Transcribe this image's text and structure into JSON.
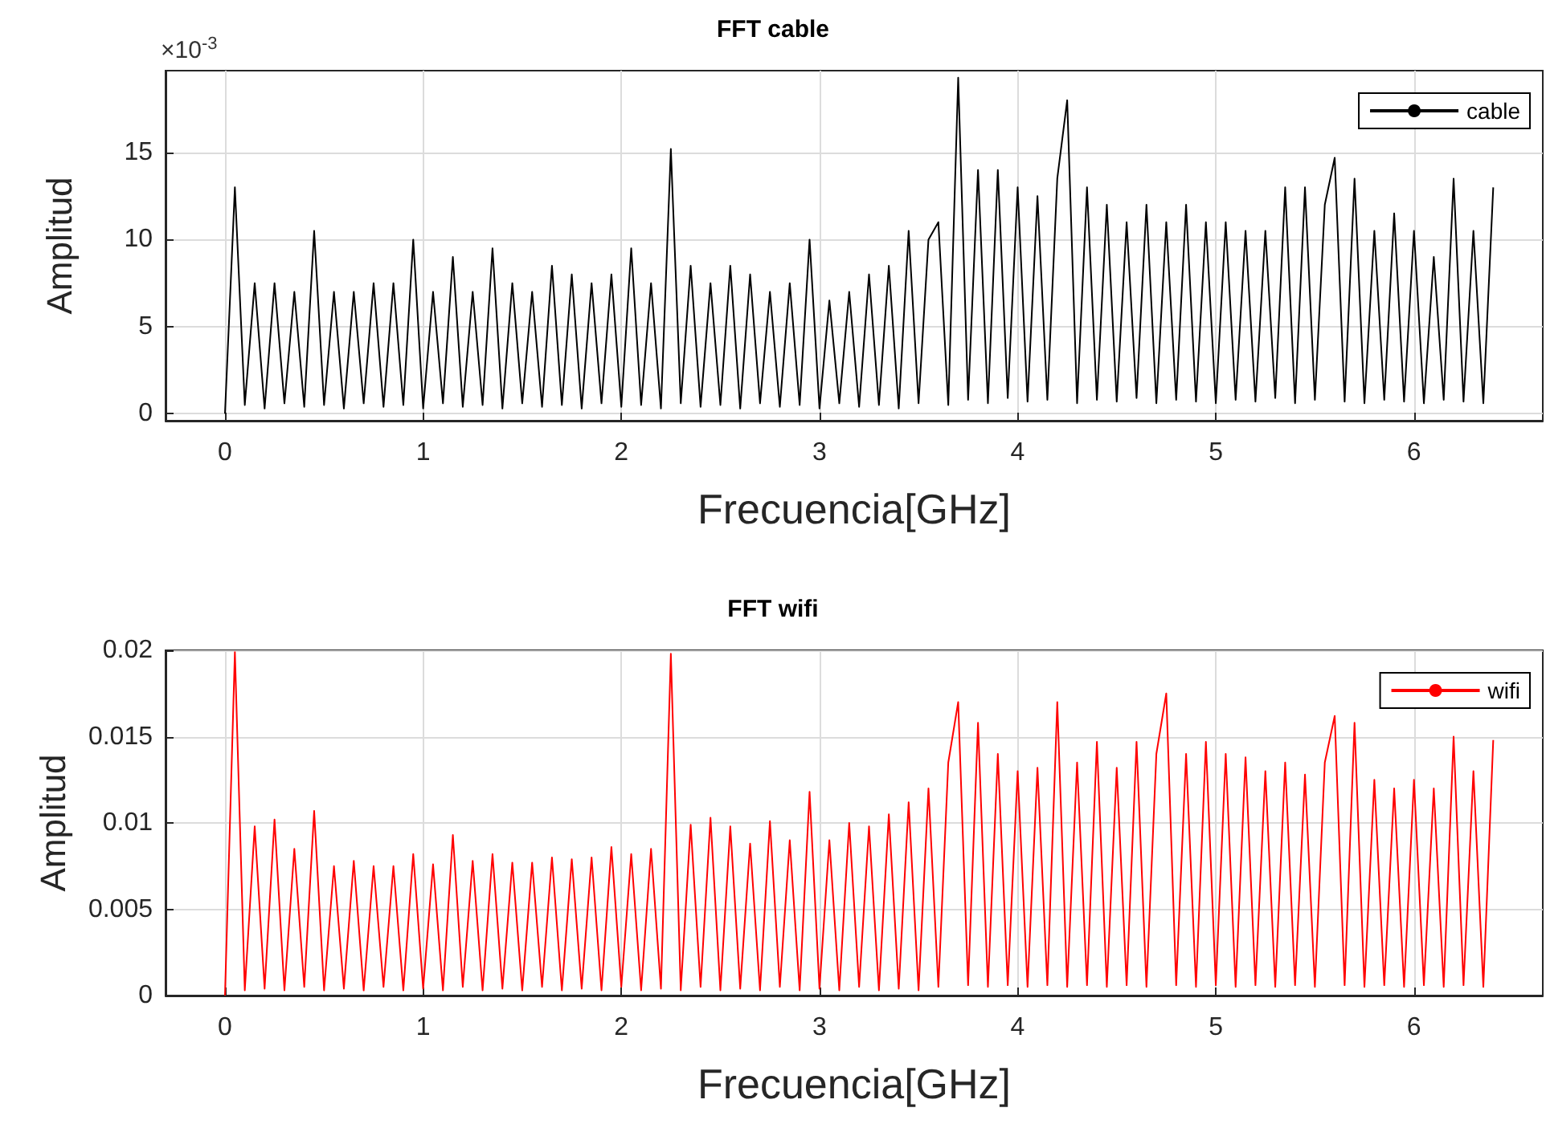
{
  "chart_data": [
    {
      "type": "line",
      "title": "FFT cable",
      "xlabel": "Frecuencia[GHz]",
      "ylabel": "Amplitud",
      "annotations": [
        "×10$^{-3}$"
      ],
      "xlim": [
        -0.3,
        6.65
      ],
      "xticks": [
        0,
        1,
        2,
        3,
        4,
        5,
        6
      ],
      "ylim": [
        -0.4,
        19.7
      ],
      "yticks": [
        0,
        5,
        10,
        15
      ],
      "grid": true,
      "legend": "top right",
      "marker": "none",
      "line_style": "solid",
      "x": [
        0,
        0.05,
        0.1,
        0.15,
        0.2,
        0.25,
        0.3,
        0.35,
        0.4,
        0.45,
        0.5,
        0.55,
        0.6,
        0.65,
        0.7,
        0.75,
        0.8,
        0.85,
        0.9,
        0.95,
        1,
        1.05,
        1.1,
        1.15,
        1.2,
        1.25,
        1.3,
        1.35,
        1.4,
        1.45,
        1.5,
        1.55,
        1.6,
        1.65,
        1.7,
        1.75,
        1.8,
        1.85,
        1.9,
        1.95,
        2,
        2.05,
        2.1,
        2.15,
        2.2,
        2.25,
        2.3,
        2.35,
        2.4,
        2.45,
        2.5,
        2.55,
        2.6,
        2.65,
        2.7,
        2.75,
        2.8,
        2.85,
        2.9,
        2.95,
        3,
        3.05,
        3.1,
        3.15,
        3.2,
        3.25,
        3.3,
        3.35,
        3.4,
        3.45,
        3.5,
        3.55,
        3.6,
        3.65,
        3.7,
        3.75,
        3.8,
        3.85,
        3.9,
        3.95,
        4,
        4.05,
        4.1,
        4.15,
        4.2,
        4.25,
        4.3,
        4.35,
        4.4,
        4.45,
        4.5,
        4.55,
        4.6,
        4.65,
        4.7,
        4.75,
        4.8,
        4.85,
        4.9,
        4.95,
        5,
        5.05,
        5.1,
        5.15,
        5.2,
        5.25,
        5.3,
        5.35,
        5.4,
        5.45,
        5.5,
        5.55,
        5.6,
        5.65,
        5.7,
        5.75,
        5.8,
        5.85,
        5.9,
        5.95,
        6,
        6.05,
        6.1,
        6.15,
        6.2,
        6.25,
        6.3,
        6.35,
        6.4
      ],
      "series": [
        {
          "name": "cable",
          "color": "#000000",
          "values": [
            0,
            13,
            0.5,
            7.5,
            0.3,
            7.5,
            0.6,
            7,
            0.4,
            10.5,
            0.5,
            7,
            0.3,
            7,
            0.6,
            7.5,
            0.4,
            7.5,
            0.5,
            10,
            0.3,
            7,
            0.6,
            9,
            0.4,
            7,
            0.5,
            9.5,
            0.3,
            7.5,
            0.6,
            7,
            0.4,
            8.5,
            0.5,
            8,
            0.3,
            7.5,
            0.6,
            8,
            0.4,
            9.5,
            0.5,
            7.5,
            0.3,
            15.2,
            0.6,
            8.5,
            0.4,
            7.5,
            0.5,
            8.5,
            0.3,
            8,
            0.6,
            7,
            0.4,
            7.5,
            0.5,
            10,
            0.3,
            6.5,
            0.6,
            7,
            0.4,
            8,
            0.5,
            8.5,
            0.3,
            10.5,
            0.6,
            10,
            11,
            0.5,
            19.3,
            0.8,
            14,
            0.6,
            14,
            0.9,
            13,
            0.7,
            12.5,
            0.8,
            13.5,
            18,
            0.6,
            13,
            0.8,
            12,
            0.7,
            11,
            0.9,
            12,
            0.6,
            11,
            0.8,
            12,
            0.7,
            11,
            0.6,
            11,
            0.8,
            10.5,
            0.7,
            10.5,
            0.9,
            13,
            0.6,
            13,
            0.8,
            12,
            14.7,
            0.7,
            13.5,
            0.6,
            10.5,
            0.8,
            11.5,
            0.7,
            10.5,
            0.6,
            9,
            0.8,
            13.5,
            0.7,
            10.5,
            0.6,
            13
          ]
        }
      ]
    },
    {
      "type": "line",
      "title": "FFT wifi",
      "xlabel": "Frecuencia[GHz]",
      "ylabel": "Amplitud",
      "xlim": [
        -0.3,
        6.65
      ],
      "xticks": [
        0,
        1,
        2,
        3,
        4,
        5,
        6
      ],
      "ylim": [
        0,
        0.02
      ],
      "yticks": [
        0,
        0.005,
        0.01,
        0.015,
        0.02
      ],
      "grid": true,
      "legend": "top right",
      "marker": "none",
      "line_style": "solid",
      "x": [
        0,
        0.05,
        0.1,
        0.15,
        0.2,
        0.25,
        0.3,
        0.35,
        0.4,
        0.45,
        0.5,
        0.55,
        0.6,
        0.65,
        0.7,
        0.75,
        0.8,
        0.85,
        0.9,
        0.95,
        1,
        1.05,
        1.1,
        1.15,
        1.2,
        1.25,
        1.3,
        1.35,
        1.4,
        1.45,
        1.5,
        1.55,
        1.6,
        1.65,
        1.7,
        1.75,
        1.8,
        1.85,
        1.9,
        1.95,
        2,
        2.05,
        2.1,
        2.15,
        2.2,
        2.25,
        2.3,
        2.35,
        2.4,
        2.45,
        2.5,
        2.55,
        2.6,
        2.65,
        2.7,
        2.75,
        2.8,
        2.85,
        2.9,
        2.95,
        3,
        3.05,
        3.1,
        3.15,
        3.2,
        3.25,
        3.3,
        3.35,
        3.4,
        3.45,
        3.5,
        3.55,
        3.6,
        3.65,
        3.7,
        3.75,
        3.8,
        3.85,
        3.9,
        3.95,
        4,
        4.05,
        4.1,
        4.15,
        4.2,
        4.25,
        4.3,
        4.35,
        4.4,
        4.45,
        4.5,
        4.55,
        4.6,
        4.65,
        4.7,
        4.75,
        4.8,
        4.85,
        4.9,
        4.95,
        5,
        5.05,
        5.1,
        5.15,
        5.2,
        5.25,
        5.3,
        5.35,
        5.4,
        5.45,
        5.5,
        5.55,
        5.6,
        5.65,
        5.7,
        5.75,
        5.8,
        5.85,
        5.9,
        5.95,
        6,
        6.05,
        6.1,
        6.15,
        6.2,
        6.25,
        6.3,
        6.35,
        6.4
      ],
      "series": [
        {
          "name": "wifi",
          "color": "#ff0000",
          "values": [
            0,
            0.0199,
            0.0003,
            0.0098,
            0.0004,
            0.0102,
            0.0003,
            0.0085,
            0.0005,
            0.0107,
            0.0003,
            0.0075,
            0.0004,
            0.0078,
            0.0003,
            0.0075,
            0.0005,
            0.0075,
            0.0003,
            0.0082,
            0.0004,
            0.0076,
            0.0003,
            0.0093,
            0.0005,
            0.0078,
            0.0003,
            0.0082,
            0.0004,
            0.0077,
            0.0003,
            0.0077,
            0.0005,
            0.008,
            0.0003,
            0.0079,
            0.0004,
            0.008,
            0.0003,
            0.0086,
            0.0005,
            0.0082,
            0.0003,
            0.0085,
            0.0004,
            0.0198,
            0.0003,
            0.0099,
            0.0005,
            0.0103,
            0.0003,
            0.0098,
            0.0004,
            0.0088,
            0.0003,
            0.0101,
            0.0005,
            0.009,
            0.0003,
            0.0118,
            0.0004,
            0.009,
            0.0003,
            0.01,
            0.0005,
            0.0098,
            0.0003,
            0.0105,
            0.0004,
            0.0112,
            0.0003,
            0.012,
            0.0005,
            0.0135,
            0.017,
            0.0006,
            0.0158,
            0.0005,
            0.014,
            0.0006,
            0.013,
            0.0005,
            0.0132,
            0.0006,
            0.017,
            0.0005,
            0.0135,
            0.0006,
            0.0147,
            0.0005,
            0.0132,
            0.0006,
            0.0147,
            0.0005,
            0.014,
            0.0175,
            0.0006,
            0.014,
            0.0005,
            0.0147,
            0.0006,
            0.014,
            0.0005,
            0.0138,
            0.0006,
            0.013,
            0.0005,
            0.0135,
            0.0006,
            0.0128,
            0.0005,
            0.0135,
            0.0162,
            0.0006,
            0.0158,
            0.0005,
            0.0125,
            0.0006,
            0.012,
            0.0005,
            0.0125,
            0.0006,
            0.012,
            0.0005,
            0.015,
            0.0006,
            0.013,
            0.0005,
            0.0148
          ]
        }
      ]
    }
  ]
}
